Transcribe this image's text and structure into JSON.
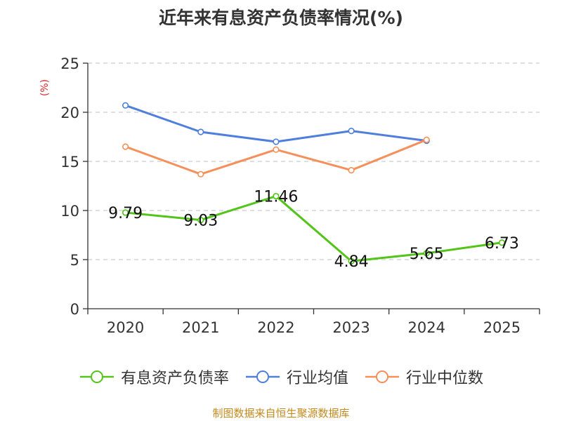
{
  "chart_data": {
    "type": "line",
    "title": "近年来有息资产负债率情况(%)",
    "ylabel": "(%)",
    "categories": [
      "2020",
      "2021",
      "2022",
      "2023",
      "2024",
      "2025"
    ],
    "ylim": [
      0,
      25
    ],
    "yticks": [
      0,
      5,
      10,
      15,
      20,
      25
    ],
    "grid": true,
    "legend_position": "bottom",
    "series": [
      {
        "name": "有息资产负债率",
        "color": "#52c41a",
        "values": [
          9.79,
          9.03,
          11.46,
          4.84,
          5.65,
          6.73
        ],
        "labels": [
          "9.79",
          "9.03",
          "11.46",
          "4.84",
          "5.65",
          "6.73"
        ]
      },
      {
        "name": "行业均值",
        "color": "#4e7fdc",
        "values": [
          20.7,
          18.0,
          17.0,
          18.1,
          17.1,
          null
        ]
      },
      {
        "name": "行业中位数",
        "color": "#f5905a",
        "values": [
          16.5,
          13.7,
          16.2,
          14.1,
          17.2,
          null
        ]
      }
    ]
  },
  "source": "制图数据来自恒生聚源数据库"
}
